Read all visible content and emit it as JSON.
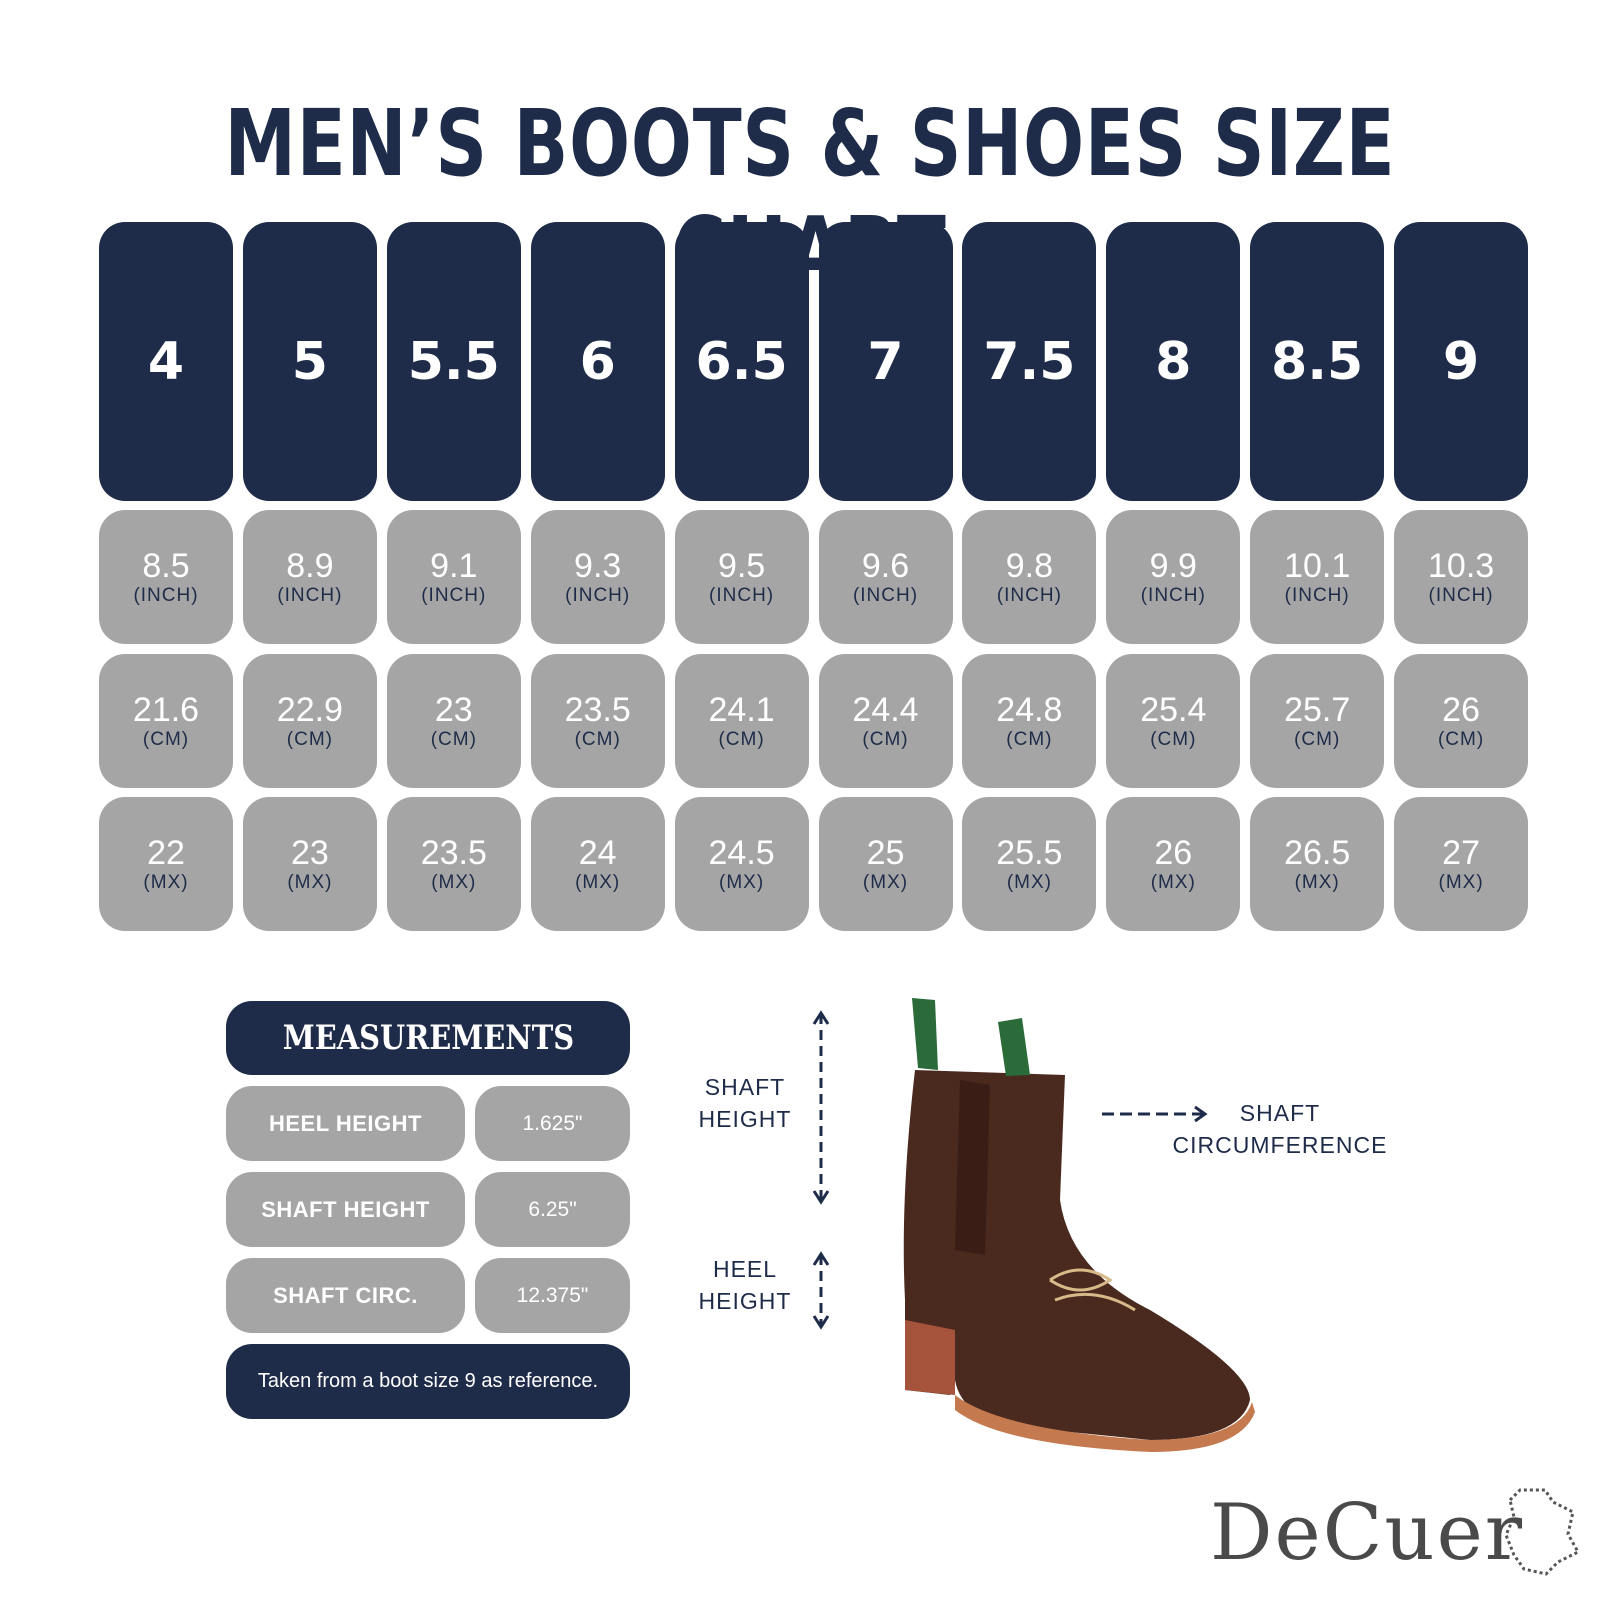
{
  "title": "MEN’S BOOTS & SHOES SIZE CHART",
  "table": {
    "sizes": [
      "4",
      "5",
      "5.5",
      "6",
      "6.5",
      "7",
      "7.5",
      "8",
      "8.5",
      "9"
    ],
    "inch": [
      "8.5",
      "8.9",
      "9.1",
      "9.3",
      "9.5",
      "9.6",
      "9.8",
      "9.9",
      "10.1",
      "10.3"
    ],
    "cm": [
      "21.6",
      "22.9",
      "23",
      "23.5",
      "24.1",
      "24.4",
      "24.8",
      "25.4",
      "25.7",
      "26"
    ],
    "mx": [
      "22",
      "23",
      "23.5",
      "24",
      "24.5",
      "25",
      "25.5",
      "26",
      "26.5",
      "27"
    ],
    "units": {
      "inch": "(INCH)",
      "cm": "(CM)",
      "mx": "(MX)"
    }
  },
  "measurements": {
    "header": "MEASUREMENTS",
    "rows": [
      [
        "HEEL HEIGHT",
        "1.625\""
      ],
      [
        "SHAFT HEIGHT",
        "6.25\""
      ],
      [
        "SHAFT CIRC.",
        "12.375\""
      ]
    ],
    "note": "Taken from a boot size 9 as reference."
  },
  "diagram": {
    "shaft_height": [
      "SHAFT",
      "HEIGHT"
    ],
    "heel_height": [
      "HEEL",
      "HEIGHT"
    ],
    "shaft_circumference": [
      "SHAFT",
      "CIRCUMFERENCE"
    ]
  },
  "logo": "DeCuer"
}
